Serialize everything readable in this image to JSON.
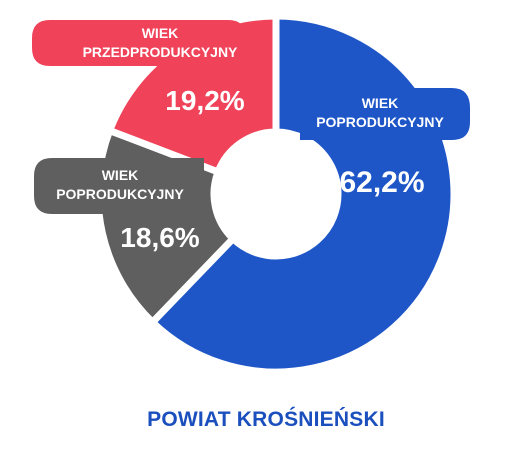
{
  "chart_data": {
    "type": "donut",
    "title": "POWIAT KROŚNIEŃSKI",
    "unit": "%",
    "slices": [
      {
        "label_line1": "WIEK",
        "label_line2": "POPRODUKCYJNY",
        "value": 62.2,
        "value_label": "62,2%",
        "color": "#1e56c8"
      },
      {
        "label_line1": "WIEK",
        "label_line2": "POPRODUKCYJNY",
        "value": 18.6,
        "value_label": "18,6%",
        "color": "#5f5f5f"
      },
      {
        "label_line1": "WIEK",
        "label_line2": "PRZEDPRODUKCYJNY",
        "value": 19.2,
        "value_label": "19,2%",
        "color": "#f0435a"
      }
    ]
  }
}
